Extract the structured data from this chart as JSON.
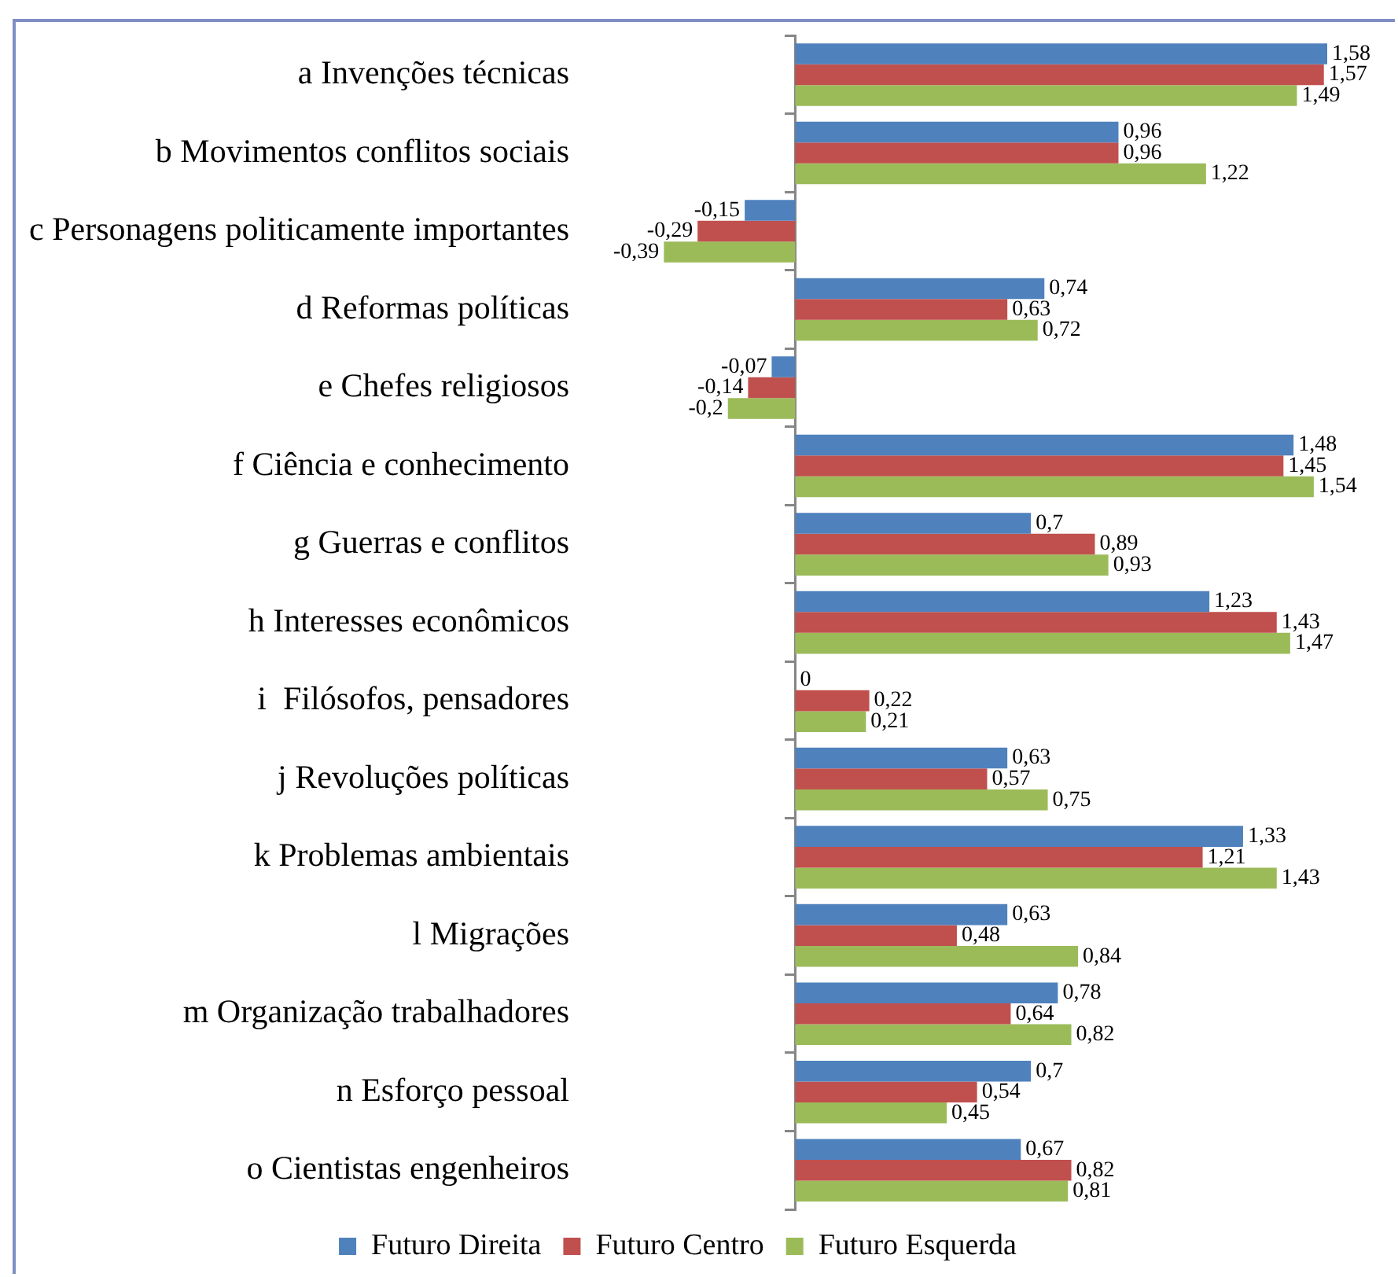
{
  "chart_data": {
    "type": "bar",
    "orientation": "horizontal",
    "categories": [
      "a Invenções técnicas",
      "b Movimentos conflitos sociais",
      "c Personagens politicamente importantes",
      "d Reformas políticas",
      "e Chefes religiosos",
      "f Ciência e conhecimento",
      "g Guerras e conflitos",
      "h Interesses econômicos",
      "i  Filósofos, pensadores",
      "j Revoluções políticas",
      "k Problemas ambientais",
      "l Migrações",
      "m Organização trabalhadores",
      "n Esforço pessoal",
      "o Cientistas engenheiros"
    ],
    "series": [
      {
        "name": "Futuro Direita",
        "color": "#4f81bd",
        "values": [
          1.58,
          0.96,
          -0.15,
          0.74,
          -0.07,
          1.48,
          0.7,
          1.23,
          0,
          0.63,
          1.33,
          0.63,
          0.78,
          0.7,
          0.67
        ],
        "value_labels": [
          "1,58",
          "0,96",
          "-0,15",
          "0,74",
          "-0,07",
          "1,48",
          "0,7",
          "1,23",
          "0",
          "0,63",
          "1,33",
          "0,63",
          "0,78",
          "0,7",
          "0,67"
        ]
      },
      {
        "name": "Futuro Centro",
        "color": "#c0504d",
        "values": [
          1.57,
          0.96,
          -0.29,
          0.63,
          -0.14,
          1.45,
          0.89,
          1.43,
          0.22,
          0.57,
          1.21,
          0.48,
          0.64,
          0.54,
          0.82
        ],
        "value_labels": [
          "1,57",
          "0,96",
          "-0,29",
          "0,63",
          "-0,14",
          "1,45",
          "0,89",
          "1,43",
          "0,22",
          "0,57",
          "1,21",
          "0,48",
          "0,64",
          "0,54",
          "0,82"
        ]
      },
      {
        "name": "Futuro Esquerda",
        "color": "#9bbb59",
        "values": [
          1.49,
          1.22,
          -0.39,
          0.72,
          -0.2,
          1.54,
          0.93,
          1.47,
          0.21,
          0.75,
          1.43,
          0.84,
          0.82,
          0.45,
          0.81
        ],
        "value_labels": [
          "1,49",
          "1,22",
          "-0,39",
          "0,72",
          "-0,2",
          "1,54",
          "0,93",
          "1,47",
          "0,21",
          "0,75",
          "1,43",
          "0,84",
          "0,82",
          "0,45",
          "0,81"
        ]
      }
    ],
    "legend": "bottom"
  }
}
